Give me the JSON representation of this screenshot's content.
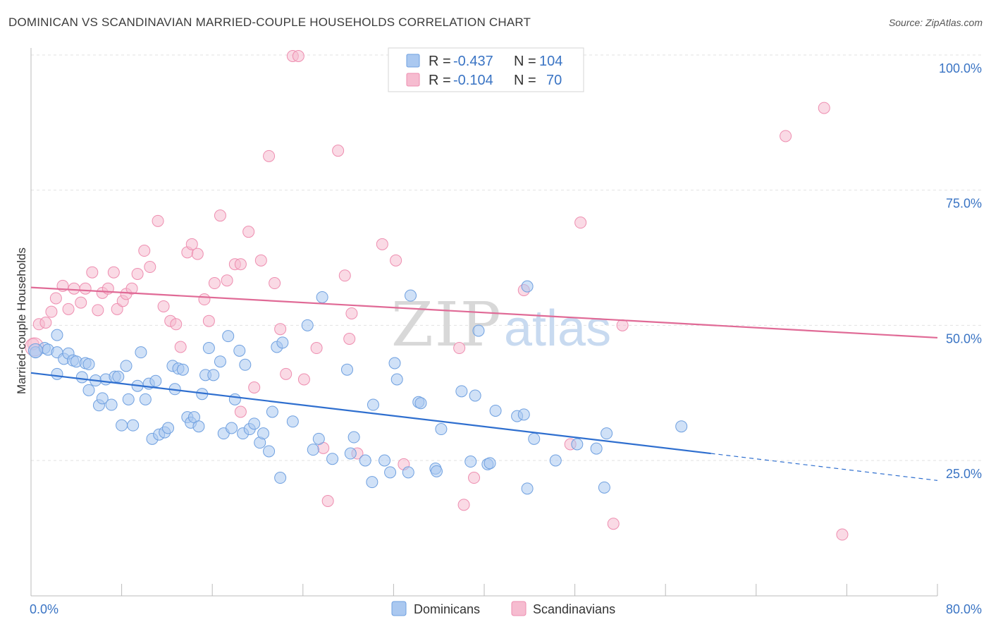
{
  "header": {
    "title": "DOMINICAN VS SCANDINAVIAN MARRIED-COUPLE HOUSEHOLDS CORRELATION CHART",
    "source": "Source: ZipAtlas.com"
  },
  "legend": {
    "rows": [
      {
        "r_label": "R = ",
        "r_value": "-0.437",
        "n_label": "N = ",
        "n_value": "104",
        "color": "#6fa0e0"
      },
      {
        "r_label": "R = ",
        "r_value": "-0.104",
        "n_label": "N = ",
        "n_value": "70",
        "color": "#f08fb0"
      }
    ],
    "bottom": [
      {
        "label": "Dominicans",
        "color": "#6fa0e0"
      },
      {
        "label": "Scandinavians",
        "color": "#f08fb0"
      }
    ]
  },
  "watermark": {
    "zip": "ZIP",
    "atlas": "atlas"
  },
  "colors": {
    "blue_fill": "#aac8f0",
    "blue_stroke": "#6fa0e0",
    "blue_line": "#2f6fcf",
    "pink_fill": "#f6bcd0",
    "pink_stroke": "#ee8eb0",
    "pink_line": "#e06a96",
    "tick": "#3a74c4"
  },
  "chart_data": {
    "type": "scatter",
    "title": "DOMINICAN VS SCANDINAVIAN MARRIED-COUPLE HOUSEHOLDS CORRELATION CHART",
    "xlabel": "",
    "ylabel": "Married-couple Households",
    "xlim": [
      0,
      80
    ],
    "ylim": [
      0,
      105
    ],
    "x_tick_labels": [
      "0.0%",
      "80.0%"
    ],
    "y_ticks": [
      25,
      50,
      75,
      100
    ],
    "y_tick_labels": [
      "25.0%",
      "50.0%",
      "75.0%",
      "100.0%"
    ],
    "grid": true,
    "series": [
      {
        "name": "Dominicans",
        "R": -0.437,
        "N": 104,
        "trend": {
          "x0": 0,
          "y0": 41.2,
          "x1": 60,
          "y1": 26.3,
          "dash_to_x": 80,
          "dash_to_y": 21.3
        },
        "points": [
          [
            0.4,
            45.0
          ],
          [
            1.2,
            45.8
          ],
          [
            1.5,
            45.5
          ],
          [
            2.3,
            45.0
          ],
          [
            2.3,
            41.0
          ],
          [
            2.3,
            48.2
          ],
          [
            2.9,
            43.8
          ],
          [
            3.3,
            44.8
          ],
          [
            3.7,
            43.5
          ],
          [
            4.0,
            43.3
          ],
          [
            4.5,
            40.4
          ],
          [
            4.8,
            43.0
          ],
          [
            5.1,
            42.8
          ],
          [
            5.1,
            38.0
          ],
          [
            5.7,
            39.8
          ],
          [
            6.0,
            35.2
          ],
          [
            6.3,
            36.5
          ],
          [
            6.6,
            40.0
          ],
          [
            7.1,
            35.3
          ],
          [
            7.4,
            40.5
          ],
          [
            7.7,
            40.5
          ],
          [
            8.0,
            31.5
          ],
          [
            8.4,
            42.5
          ],
          [
            8.6,
            36.3
          ],
          [
            9.0,
            31.5
          ],
          [
            9.4,
            38.8
          ],
          [
            9.7,
            45.0
          ],
          [
            10.1,
            36.3
          ],
          [
            10.4,
            39.2
          ],
          [
            10.7,
            29.0
          ],
          [
            11.0,
            39.7
          ],
          [
            11.3,
            29.8
          ],
          [
            11.8,
            30.2
          ],
          [
            12.1,
            31.0
          ],
          [
            12.5,
            42.5
          ],
          [
            12.7,
            38.2
          ],
          [
            13.0,
            42.0
          ],
          [
            13.4,
            41.8
          ],
          [
            13.8,
            33.0
          ],
          [
            14.1,
            32.0
          ],
          [
            14.4,
            33.0
          ],
          [
            14.8,
            31.3
          ],
          [
            15.1,
            37.3
          ],
          [
            15.4,
            40.8
          ],
          [
            15.7,
            45.8
          ],
          [
            16.1,
            40.8
          ],
          [
            16.7,
            43.3
          ],
          [
            17.0,
            30.0
          ],
          [
            17.4,
            48.0
          ],
          [
            17.7,
            31.0
          ],
          [
            18.0,
            36.3
          ],
          [
            18.4,
            45.3
          ],
          [
            18.7,
            30.0
          ],
          [
            18.9,
            42.7
          ],
          [
            19.3,
            30.8
          ],
          [
            19.7,
            31.8
          ],
          [
            20.2,
            28.3
          ],
          [
            20.5,
            30.0
          ],
          [
            21.0,
            26.7
          ],
          [
            21.3,
            34.0
          ],
          [
            21.7,
            46.0
          ],
          [
            22.0,
            21.8
          ],
          [
            22.2,
            46.8
          ],
          [
            23.1,
            32.2
          ],
          [
            24.4,
            50.0
          ],
          [
            24.9,
            27.0
          ],
          [
            25.4,
            29.0
          ],
          [
            25.7,
            55.2
          ],
          [
            26.6,
            25.3
          ],
          [
            27.9,
            41.8
          ],
          [
            28.2,
            26.3
          ],
          [
            28.5,
            29.3
          ],
          [
            29.5,
            25.0
          ],
          [
            30.1,
            21.0
          ],
          [
            30.2,
            35.3
          ],
          [
            31.2,
            25.0
          ],
          [
            31.7,
            22.8
          ],
          [
            32.1,
            43.0
          ],
          [
            32.3,
            40.0
          ],
          [
            33.3,
            22.8
          ],
          [
            33.5,
            55.5
          ],
          [
            34.2,
            35.8
          ],
          [
            34.4,
            35.6
          ],
          [
            35.7,
            23.5
          ],
          [
            35.8,
            23.0
          ],
          [
            36.2,
            30.8
          ],
          [
            38.0,
            37.8
          ],
          [
            38.8,
            24.8
          ],
          [
            39.2,
            37.0
          ],
          [
            39.5,
            49.0
          ],
          [
            40.3,
            24.3
          ],
          [
            40.5,
            24.5
          ],
          [
            41.0,
            34.2
          ],
          [
            42.9,
            33.2
          ],
          [
            43.5,
            33.5
          ],
          [
            43.8,
            19.8
          ],
          [
            43.8,
            57.2
          ],
          [
            44.4,
            29.0
          ],
          [
            46.3,
            25.0
          ],
          [
            48.2,
            28.0
          ],
          [
            49.9,
            27.2
          ],
          [
            50.6,
            20.0
          ],
          [
            50.8,
            30.0
          ],
          [
            57.4,
            31.3
          ]
        ]
      },
      {
        "name": "Scandinavians",
        "R": -0.104,
        "N": 70,
        "trend": {
          "x0": 0,
          "y0": 57.0,
          "x1": 80,
          "y1": 47.7
        },
        "points": [
          [
            0.2,
            46.5
          ],
          [
            0.7,
            50.2
          ],
          [
            1.3,
            50.5
          ],
          [
            1.8,
            52.5
          ],
          [
            2.2,
            55.0
          ],
          [
            2.8,
            57.3
          ],
          [
            3.3,
            53.0
          ],
          [
            3.8,
            56.8
          ],
          [
            4.4,
            54.2
          ],
          [
            4.8,
            56.8
          ],
          [
            5.4,
            59.8
          ],
          [
            5.9,
            52.8
          ],
          [
            6.3,
            56.0
          ],
          [
            6.8,
            56.8
          ],
          [
            7.3,
            59.8
          ],
          [
            7.6,
            53.0
          ],
          [
            8.1,
            54.5
          ],
          [
            8.4,
            55.8
          ],
          [
            8.9,
            56.8
          ],
          [
            9.4,
            59.5
          ],
          [
            10.0,
            63.8
          ],
          [
            10.5,
            60.8
          ],
          [
            11.2,
            69.3
          ],
          [
            11.7,
            53.5
          ],
          [
            12.3,
            50.8
          ],
          [
            12.8,
            50.2
          ],
          [
            13.2,
            46.0
          ],
          [
            13.8,
            63.5
          ],
          [
            14.2,
            65.0
          ],
          [
            14.7,
            63.2
          ],
          [
            15.3,
            54.8
          ],
          [
            15.7,
            50.8
          ],
          [
            16.2,
            57.8
          ],
          [
            16.7,
            70.3
          ],
          [
            17.3,
            58.3
          ],
          [
            18.0,
            61.3
          ],
          [
            18.5,
            61.3
          ],
          [
            18.5,
            34.0
          ],
          [
            19.2,
            67.3
          ],
          [
            19.7,
            38.5
          ],
          [
            20.3,
            62.0
          ],
          [
            21.0,
            81.3
          ],
          [
            21.5,
            57.8
          ],
          [
            22.0,
            49.3
          ],
          [
            22.5,
            41.0
          ],
          [
            23.1,
            99.8
          ],
          [
            23.6,
            99.8
          ],
          [
            24.1,
            40.0
          ],
          [
            25.2,
            45.8
          ],
          [
            25.8,
            27.3
          ],
          [
            26.2,
            17.5
          ],
          [
            27.1,
            82.3
          ],
          [
            27.7,
            59.2
          ],
          [
            28.1,
            47.5
          ],
          [
            28.3,
            52.2
          ],
          [
            28.8,
            26.3
          ],
          [
            31.0,
            65.0
          ],
          [
            32.2,
            62.0
          ],
          [
            32.9,
            24.3
          ],
          [
            37.8,
            45.8
          ],
          [
            38.2,
            16.8
          ],
          [
            39.1,
            21.8
          ],
          [
            43.5,
            56.5
          ],
          [
            47.6,
            28.0
          ],
          [
            48.5,
            69.0
          ],
          [
            51.4,
            13.3
          ],
          [
            52.2,
            50.0
          ],
          [
            66.6,
            85.0
          ],
          [
            70.0,
            90.2
          ],
          [
            71.6,
            11.3
          ]
        ]
      }
    ]
  }
}
